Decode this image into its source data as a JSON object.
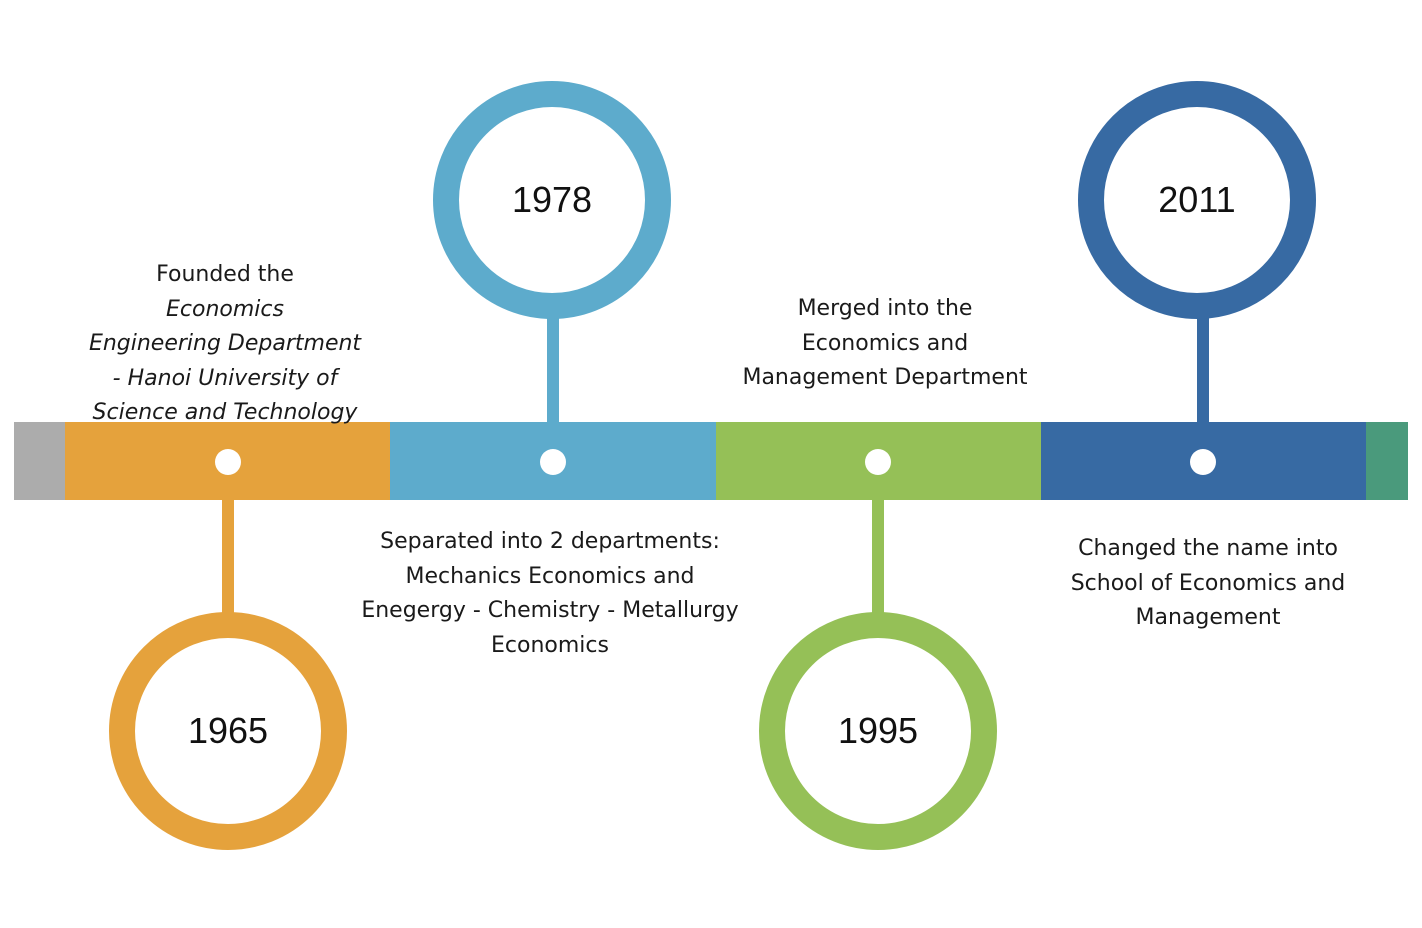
{
  "colors": {
    "gray": "#acacac",
    "orange": "#e5a23c",
    "light_blue": "#5dabcc",
    "green": "#95c057",
    "dark_blue": "#376aa3",
    "teal": "#4a9a7c"
  },
  "events": [
    {
      "year": "1965",
      "color": "orange",
      "text": {
        "line1_plain": "Founded the ",
        "line1_italic": "Economics",
        "line2": "Engineering Department",
        "line3": "- Hanoi University of",
        "line4": "Science and Technology"
      }
    },
    {
      "year": "1978",
      "color": "light_blue",
      "text": {
        "line1": "Separated into 2 departments:",
        "line2": "Mechanics Economics and",
        "line3": "Enegergy - Chemistry - Metallurgy",
        "line4": "Economics"
      }
    },
    {
      "year": "1995",
      "color": "green",
      "text": {
        "line1": "Merged into the",
        "line2": "Economics and",
        "line3": "Management Department"
      }
    },
    {
      "year": "2011",
      "color": "dark_blue",
      "text": {
        "line1": "Changed the name into",
        "line2": "School of Economics and",
        "line3": "Management"
      }
    }
  ]
}
